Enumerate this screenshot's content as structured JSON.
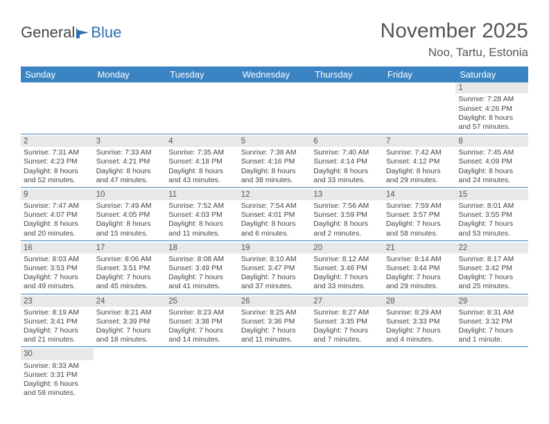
{
  "logo": {
    "text1": "General",
    "text2": "Blue",
    "flag_color": "#2f6fb0"
  },
  "title": "November 2025",
  "location": "Noo, Tartu, Estonia",
  "header_bg": "#3b84c4",
  "days": [
    "Sunday",
    "Monday",
    "Tuesday",
    "Wednesday",
    "Thursday",
    "Friday",
    "Saturday"
  ],
  "weeks": [
    [
      null,
      null,
      null,
      null,
      null,
      null,
      {
        "n": "1",
        "sr": "7:28 AM",
        "ss": "4:26 PM",
        "dl": "8 hours and 57 minutes."
      }
    ],
    [
      {
        "n": "2",
        "sr": "7:31 AM",
        "ss": "4:23 PM",
        "dl": "8 hours and 52 minutes."
      },
      {
        "n": "3",
        "sr": "7:33 AM",
        "ss": "4:21 PM",
        "dl": "8 hours and 47 minutes."
      },
      {
        "n": "4",
        "sr": "7:35 AM",
        "ss": "4:18 PM",
        "dl": "8 hours and 43 minutes."
      },
      {
        "n": "5",
        "sr": "7:38 AM",
        "ss": "4:16 PM",
        "dl": "8 hours and 38 minutes."
      },
      {
        "n": "6",
        "sr": "7:40 AM",
        "ss": "4:14 PM",
        "dl": "8 hours and 33 minutes."
      },
      {
        "n": "7",
        "sr": "7:42 AM",
        "ss": "4:12 PM",
        "dl": "8 hours and 29 minutes."
      },
      {
        "n": "8",
        "sr": "7:45 AM",
        "ss": "4:09 PM",
        "dl": "8 hours and 24 minutes."
      }
    ],
    [
      {
        "n": "9",
        "sr": "7:47 AM",
        "ss": "4:07 PM",
        "dl": "8 hours and 20 minutes."
      },
      {
        "n": "10",
        "sr": "7:49 AM",
        "ss": "4:05 PM",
        "dl": "8 hours and 15 minutes."
      },
      {
        "n": "11",
        "sr": "7:52 AM",
        "ss": "4:03 PM",
        "dl": "8 hours and 11 minutes."
      },
      {
        "n": "12",
        "sr": "7:54 AM",
        "ss": "4:01 PM",
        "dl": "8 hours and 6 minutes."
      },
      {
        "n": "13",
        "sr": "7:56 AM",
        "ss": "3:59 PM",
        "dl": "8 hours and 2 minutes."
      },
      {
        "n": "14",
        "sr": "7:59 AM",
        "ss": "3:57 PM",
        "dl": "7 hours and 58 minutes."
      },
      {
        "n": "15",
        "sr": "8:01 AM",
        "ss": "3:55 PM",
        "dl": "7 hours and 53 minutes."
      }
    ],
    [
      {
        "n": "16",
        "sr": "8:03 AM",
        "ss": "3:53 PM",
        "dl": "7 hours and 49 minutes."
      },
      {
        "n": "17",
        "sr": "8:06 AM",
        "ss": "3:51 PM",
        "dl": "7 hours and 45 minutes."
      },
      {
        "n": "18",
        "sr": "8:08 AM",
        "ss": "3:49 PM",
        "dl": "7 hours and 41 minutes."
      },
      {
        "n": "19",
        "sr": "8:10 AM",
        "ss": "3:47 PM",
        "dl": "7 hours and 37 minutes."
      },
      {
        "n": "20",
        "sr": "8:12 AM",
        "ss": "3:46 PM",
        "dl": "7 hours and 33 minutes."
      },
      {
        "n": "21",
        "sr": "8:14 AM",
        "ss": "3:44 PM",
        "dl": "7 hours and 29 minutes."
      },
      {
        "n": "22",
        "sr": "8:17 AM",
        "ss": "3:42 PM",
        "dl": "7 hours and 25 minutes."
      }
    ],
    [
      {
        "n": "23",
        "sr": "8:19 AM",
        "ss": "3:41 PM",
        "dl": "7 hours and 21 minutes."
      },
      {
        "n": "24",
        "sr": "8:21 AM",
        "ss": "3:39 PM",
        "dl": "7 hours and 18 minutes."
      },
      {
        "n": "25",
        "sr": "8:23 AM",
        "ss": "3:38 PM",
        "dl": "7 hours and 14 minutes."
      },
      {
        "n": "26",
        "sr": "8:25 AM",
        "ss": "3:36 PM",
        "dl": "7 hours and 11 minutes."
      },
      {
        "n": "27",
        "sr": "8:27 AM",
        "ss": "3:35 PM",
        "dl": "7 hours and 7 minutes."
      },
      {
        "n": "28",
        "sr": "8:29 AM",
        "ss": "3:33 PM",
        "dl": "7 hours and 4 minutes."
      },
      {
        "n": "29",
        "sr": "8:31 AM",
        "ss": "3:32 PM",
        "dl": "7 hours and 1 minute."
      }
    ],
    [
      {
        "n": "30",
        "sr": "8:33 AM",
        "ss": "3:31 PM",
        "dl": "6 hours and 58 minutes."
      },
      null,
      null,
      null,
      null,
      null,
      null
    ]
  ],
  "labels": {
    "sunrise": "Sunrise: ",
    "sunset": "Sunset: ",
    "daylight": "Daylight: "
  }
}
